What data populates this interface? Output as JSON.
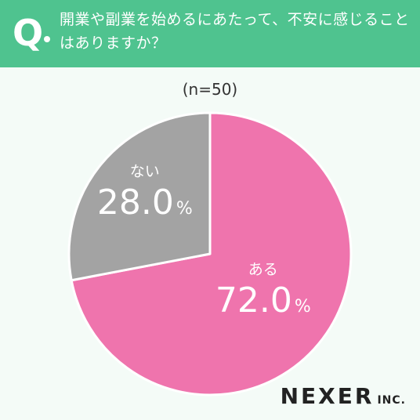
{
  "header": {
    "q_mark": "Q",
    "question": "開業や副業を始めるにあたって、不安に感じることはありますか？",
    "bg_color": "#4fc38f"
  },
  "sample_label": "(n=50)",
  "brand": {
    "name": "NEXER",
    "suffix": "INC."
  },
  "chart_data": {
    "type": "pie",
    "categories": [
      "ある",
      "ない"
    ],
    "values": [
      72.0,
      28.0
    ],
    "value_labels": [
      "72.0",
      "28.0"
    ],
    "unit": "%",
    "colors": [
      "#ef74ad",
      "#a3a3a3"
    ],
    "start": "12 o'clock",
    "direction": "clockwise"
  }
}
